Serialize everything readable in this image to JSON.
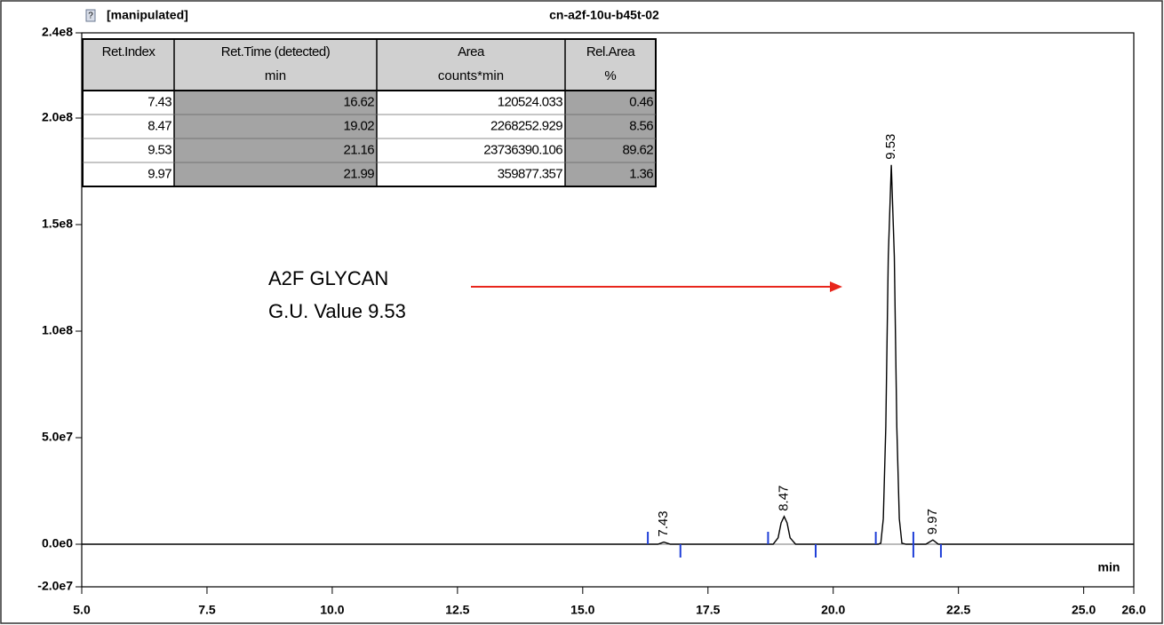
{
  "chart_data": {
    "type": "line",
    "title": "cn-a2f-10u-b45t-02",
    "subtitle": "[manipulated]",
    "x_label": "min",
    "xlim": [
      5.0,
      26.0
    ],
    "ylim": [
      -20000000,
      240000000
    ],
    "xticks": [
      {
        "value": 5,
        "label": "5.0"
      },
      {
        "value": 7.5,
        "label": "7.5"
      },
      {
        "value": 10,
        "label": "10.0"
      },
      {
        "value": 12.5,
        "label": "12.5"
      },
      {
        "value": 15,
        "label": "15.0"
      },
      {
        "value": 17.5,
        "label": "17.5"
      },
      {
        "value": 20,
        "label": "20.0"
      },
      {
        "value": 22.5,
        "label": "22.5"
      },
      {
        "value": 25,
        "label": "25.0"
      },
      {
        "value": 26,
        "label": "26.0"
      }
    ],
    "yticks": [
      {
        "value": -20000000,
        "label": "-2.0e7"
      },
      {
        "value": 0,
        "label": "0.0e0"
      },
      {
        "value": 50000000,
        "label": "5.0e7"
      },
      {
        "value": 100000000,
        "label": "1.0e8"
      },
      {
        "value": 150000000,
        "label": "1.5e8"
      },
      {
        "value": 200000000,
        "label": "2.0e8"
      },
      {
        "value": 240000000,
        "label": "2.4e8"
      }
    ],
    "series": [
      {
        "color": "#000000",
        "x": [
          5.0,
          16.5,
          16.62,
          16.75,
          18.8,
          18.9,
          18.96,
          19.02,
          19.08,
          19.14,
          19.25,
          20.9,
          20.95,
          21.0,
          21.05,
          21.1,
          21.16,
          21.22,
          21.27,
          21.32,
          21.37,
          21.45,
          21.85,
          21.99,
          22.1,
          26.0
        ],
        "values": [
          0,
          0,
          1000000,
          0,
          0,
          3000000,
          10000000,
          13000000,
          10000000,
          3000000,
          0,
          0,
          500000,
          12000000,
          55000000,
          135000000,
          178000000,
          135000000,
          55000000,
          12000000,
          500000,
          0,
          0,
          2000000,
          0,
          0
        ]
      }
    ],
    "peaks": [
      {
        "x": 16.62,
        "y": 1000000,
        "label": "7.43"
      },
      {
        "x": 19.02,
        "y": 13000000,
        "label": "8.47"
      },
      {
        "x": 21.16,
        "y": 178000000,
        "label": "9.53"
      },
      {
        "x": 21.99,
        "y": 2000000,
        "label": "9.97"
      }
    ],
    "peak_start": [
      16.3,
      18.7,
      20.85,
      21.6
    ],
    "peak_end": [
      16.95,
      19.65,
      21.6,
      22.15
    ],
    "annotation": {
      "lines": [
        "A2F GLYCAN",
        "G.U. Value 9.53"
      ],
      "color": "#e8261c"
    },
    "table": {
      "header": [
        {
          "name": "Ret.Index"
        },
        {
          "name": "Ret.Time (detected)",
          "unit": "min"
        },
        {
          "name": "Area",
          "unit": "counts*min"
        },
        {
          "name": "Rel.Area",
          "unit": "%"
        }
      ],
      "rows": [
        [
          "7.43",
          "16.62",
          "120524.033",
          "0.46"
        ],
        [
          "8.47",
          "19.02",
          "2268252.929",
          "8.56"
        ],
        [
          "9.53",
          "21.16",
          "23736390.106",
          "89.62"
        ],
        [
          "9.97",
          "21.99",
          "359877.357",
          "1.36"
        ]
      ]
    }
  }
}
